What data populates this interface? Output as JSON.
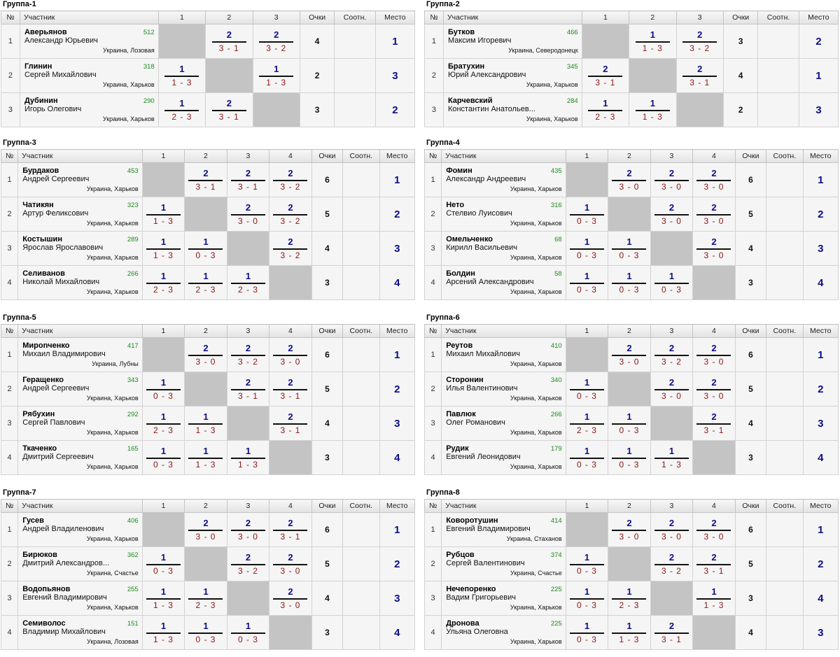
{
  "headers": {
    "num": "№",
    "participant": "Участник",
    "points": "Очки",
    "relative": "Соотн.",
    "place": "Место"
  },
  "groups": [
    {
      "title": "Группа-1",
      "cols": [
        "1",
        "2",
        "3"
      ],
      "rows": [
        {
          "num": "1",
          "last": "Аверьянов",
          "first": "Александр Юрьевич",
          "rating": "512",
          "city": "Украина, Лозовая",
          "cells": [
            null,
            {
              "top": "2",
              "bot": "3 - 1"
            },
            {
              "top": "2",
              "bot": "3 - 2"
            }
          ],
          "points": "4",
          "place": "1"
        },
        {
          "num": "2",
          "last": "Глинин",
          "first": "Сергей Михайлович",
          "rating": "318",
          "city": "Украина, Харьков",
          "cells": [
            {
              "top": "1",
              "bot": "1 - 3"
            },
            null,
            {
              "top": "1",
              "bot": "1 - 3"
            }
          ],
          "points": "2",
          "place": "3"
        },
        {
          "num": "3",
          "last": "Дубинин",
          "first": "Игорь Олегович",
          "rating": "290",
          "city": "Украина, Харьков",
          "cells": [
            {
              "top": "1",
              "bot": "2 - 3"
            },
            {
              "top": "2",
              "bot": "3 - 1"
            },
            null
          ],
          "points": "3",
          "place": "2"
        }
      ]
    },
    {
      "title": "Группа-2",
      "cols": [
        "1",
        "2",
        "3"
      ],
      "rows": [
        {
          "num": "1",
          "last": "Бутков",
          "first": "Максим Игоревич",
          "rating": "466",
          "city": "Украина, Северодонецк",
          "cells": [
            null,
            {
              "top": "1",
              "bot": "1 - 3"
            },
            {
              "top": "2",
              "bot": "3 - 2"
            }
          ],
          "points": "3",
          "place": "2"
        },
        {
          "num": "2",
          "last": "Братухин",
          "first": "Юрий Александрович",
          "rating": "345",
          "city": "Украина, Харьков",
          "cells": [
            {
              "top": "2",
              "bot": "3 - 1"
            },
            null,
            {
              "top": "2",
              "bot": "3 - 1"
            }
          ],
          "points": "4",
          "place": "1"
        },
        {
          "num": "3",
          "last": "Карчевский",
          "first": "Константин Анатольев...",
          "rating": "284",
          "city": "Украина, Харьков",
          "cells": [
            {
              "top": "1",
              "bot": "2 - 3"
            },
            {
              "top": "1",
              "bot": "1 - 3"
            },
            null
          ],
          "points": "2",
          "place": "3"
        }
      ]
    },
    {
      "title": "Группа-3",
      "cols": [
        "1",
        "2",
        "3",
        "4"
      ],
      "rows": [
        {
          "num": "1",
          "last": "Бурдаков",
          "first": "Андрей Сергеевич",
          "rating": "453",
          "city": "Украина, Харьков",
          "cells": [
            null,
            {
              "top": "2",
              "bot": "3 - 1"
            },
            {
              "top": "2",
              "bot": "3 - 1"
            },
            {
              "top": "2",
              "bot": "3 - 2"
            }
          ],
          "points": "6",
          "place": "1"
        },
        {
          "num": "2",
          "last": "Чатикян",
          "first": "Артур Феликсович",
          "rating": "323",
          "city": "Украина, Харьков",
          "cells": [
            {
              "top": "1",
              "bot": "1 - 3"
            },
            null,
            {
              "top": "2",
              "bot": "3 - 0"
            },
            {
              "top": "2",
              "bot": "3 - 2"
            }
          ],
          "points": "5",
          "place": "2"
        },
        {
          "num": "3",
          "last": "Костышин",
          "first": "Ярослав Ярославович",
          "rating": "289",
          "city": "Украина, Харьков",
          "cells": [
            {
              "top": "1",
              "bot": "1 - 3"
            },
            {
              "top": "1",
              "bot": "0 - 3"
            },
            null,
            {
              "top": "2",
              "bot": "3 - 2"
            }
          ],
          "points": "4",
          "place": "3"
        },
        {
          "num": "4",
          "last": "Селиванов",
          "first": "Николай Михайлович",
          "rating": "266",
          "city": "Украина, Харьков",
          "cells": [
            {
              "top": "1",
              "bot": "2 - 3"
            },
            {
              "top": "1",
              "bot": "2 - 3"
            },
            {
              "top": "1",
              "bot": "2 - 3"
            },
            null
          ],
          "points": "3",
          "place": "4"
        }
      ]
    },
    {
      "title": "Группа-4",
      "cols": [
        "1",
        "2",
        "3",
        "4"
      ],
      "rows": [
        {
          "num": "1",
          "last": "Фомин",
          "first": "Александр Андреевич",
          "rating": "435",
          "city": "Украина, Харьков",
          "cells": [
            null,
            {
              "top": "2",
              "bot": "3 - 0"
            },
            {
              "top": "2",
              "bot": "3 - 0"
            },
            {
              "top": "2",
              "bot": "3 - 0"
            }
          ],
          "points": "6",
          "place": "1"
        },
        {
          "num": "2",
          "last": "Нето",
          "first": "Стелвио Луисович",
          "rating": "316",
          "city": "Украина, Харьков",
          "cells": [
            {
              "top": "1",
              "bot": "0 - 3"
            },
            null,
            {
              "top": "2",
              "bot": "3 - 0"
            },
            {
              "top": "2",
              "bot": "3 - 0"
            }
          ],
          "points": "5",
          "place": "2"
        },
        {
          "num": "3",
          "last": "Омельченко",
          "first": "Кирилл Васильевич",
          "rating": "68",
          "city": "Украина, Харьков",
          "cells": [
            {
              "top": "1",
              "bot": "0 - 3"
            },
            {
              "top": "1",
              "bot": "0 - 3"
            },
            null,
            {
              "top": "2",
              "bot": "3 - 0"
            }
          ],
          "points": "4",
          "place": "3"
        },
        {
          "num": "4",
          "last": "Болдин",
          "first": "Арсений Александрович",
          "rating": "58",
          "city": "Украина, Харьков",
          "cells": [
            {
              "top": "1",
              "bot": "0 - 3"
            },
            {
              "top": "1",
              "bot": "0 - 3"
            },
            {
              "top": "1",
              "bot": "0 - 3"
            },
            null
          ],
          "points": "3",
          "place": "4"
        }
      ]
    },
    {
      "title": "Группа-5",
      "cols": [
        "1",
        "2",
        "3",
        "4"
      ],
      "rows": [
        {
          "num": "1",
          "last": "Мирonченко",
          "first": "Михаил Владимирович",
          "rating": "417",
          "city": "Украина, Лубны",
          "cells": [
            null,
            {
              "top": "2",
              "bot": "3 - 0"
            },
            {
              "top": "2",
              "bot": "3 - 2"
            },
            {
              "top": "2",
              "bot": "3 - 0"
            }
          ],
          "points": "6",
          "place": "1"
        },
        {
          "num": "2",
          "last": "Геращенко",
          "first": "Андрей Сергеевич",
          "rating": "343",
          "city": "Украина, Харьков",
          "cells": [
            {
              "top": "1",
              "bot": "0 - 3"
            },
            null,
            {
              "top": "2",
              "bot": "3 - 1"
            },
            {
              "top": "2",
              "bot": "3 - 1"
            }
          ],
          "points": "5",
          "place": "2"
        },
        {
          "num": "3",
          "last": "Рябухин",
          "first": "Сергей Павлович",
          "rating": "292",
          "city": "Украина, Харьков",
          "cells": [
            {
              "top": "1",
              "bot": "2 - 3"
            },
            {
              "top": "1",
              "bot": "1 - 3"
            },
            null,
            {
              "top": "2",
              "bot": "3 - 1"
            }
          ],
          "points": "4",
          "place": "3"
        },
        {
          "num": "4",
          "last": "Ткаченко",
          "first": "Дмитрий Сергеевич",
          "rating": "165",
          "city": "Украина, Харьков",
          "cells": [
            {
              "top": "1",
              "bot": "0 - 3"
            },
            {
              "top": "1",
              "bot": "1 - 3"
            },
            {
              "top": "1",
              "bot": "1 - 3"
            },
            null
          ],
          "points": "3",
          "place": "4"
        }
      ]
    },
    {
      "title": "Группа-6",
      "cols": [
        "1",
        "2",
        "3",
        "4"
      ],
      "rows": [
        {
          "num": "1",
          "last": "Реутов",
          "first": "Михаил Михайлович",
          "rating": "410",
          "city": "Украина, Харьков",
          "cells": [
            null,
            {
              "top": "2",
              "bot": "3 - 0"
            },
            {
              "top": "2",
              "bot": "3 - 2"
            },
            {
              "top": "2",
              "bot": "3 - 0"
            }
          ],
          "points": "6",
          "place": "1"
        },
        {
          "num": "2",
          "last": "Сторонин",
          "first": "Илья Валентинович",
          "rating": "340",
          "city": "Украина, Харьков",
          "cells": [
            {
              "top": "1",
              "bot": "0 - 3"
            },
            null,
            {
              "top": "2",
              "bot": "3 - 0"
            },
            {
              "top": "2",
              "bot": "3 - 0"
            }
          ],
          "points": "5",
          "place": "2"
        },
        {
          "num": "3",
          "last": "Павлюк",
          "first": "Олег Романович",
          "rating": "266",
          "city": "Украина, Харьков",
          "cells": [
            {
              "top": "1",
              "bot": "2 - 3"
            },
            {
              "top": "1",
              "bot": "0 - 3"
            },
            null,
            {
              "top": "2",
              "bot": "3 - 1"
            }
          ],
          "points": "4",
          "place": "3"
        },
        {
          "num": "4",
          "last": "Рудик",
          "first": "Евгений Леонидович",
          "rating": "179",
          "city": "Украина, Харьков",
          "cells": [
            {
              "top": "1",
              "bot": "0 - 3"
            },
            {
              "top": "1",
              "bot": "0 - 3"
            },
            {
              "top": "1",
              "bot": "1 - 3"
            },
            null
          ],
          "points": "3",
          "place": "4"
        }
      ]
    },
    {
      "title": "Группа-7",
      "cols": [
        "1",
        "2",
        "3",
        "4"
      ],
      "rows": [
        {
          "num": "1",
          "last": "Гусев",
          "first": "Андрей Владиленович",
          "rating": "406",
          "city": "Украина, Харьков",
          "cells": [
            null,
            {
              "top": "2",
              "bot": "3 - 0"
            },
            {
              "top": "2",
              "bot": "3 - 0"
            },
            {
              "top": "2",
              "bot": "3 - 1"
            }
          ],
          "points": "6",
          "place": "1"
        },
        {
          "num": "2",
          "last": "Бирюков",
          "first": "Дмитрий Александров...",
          "rating": "362",
          "city": "Украина, Счастье",
          "cells": [
            {
              "top": "1",
              "bot": "0 - 3"
            },
            null,
            {
              "top": "2",
              "bot": "3 - 2"
            },
            {
              "top": "2",
              "bot": "3 - 0"
            }
          ],
          "points": "5",
          "place": "2"
        },
        {
          "num": "3",
          "last": "Водопьянов",
          "first": "Евгений Владимирович",
          "rating": "255",
          "city": "Украина, Харьков",
          "cells": [
            {
              "top": "1",
              "bot": "1 - 3"
            },
            {
              "top": "1",
              "bot": "2 - 3"
            },
            null,
            {
              "top": "2",
              "bot": "3 - 0"
            }
          ],
          "points": "4",
          "place": "3"
        },
        {
          "num": "4",
          "last": "Семиволос",
          "first": "Владимир Михайлович",
          "rating": "151",
          "city": "Украина, Лозовая",
          "cells": [
            {
              "top": "1",
              "bot": "1 - 3"
            },
            {
              "top": "1",
              "bot": "0 - 3"
            },
            {
              "top": "1",
              "bot": "0 - 3"
            },
            null
          ],
          "points": "3",
          "place": "4"
        }
      ]
    },
    {
      "title": "Группа-8",
      "cols": [
        "1",
        "2",
        "3",
        "4"
      ],
      "rows": [
        {
          "num": "1",
          "last": "Коворотушин",
          "first": "Евгений Владимирович",
          "rating": "414",
          "city": "Украина, Стаханов",
          "cells": [
            null,
            {
              "top": "2",
              "bot": "3 - 0"
            },
            {
              "top": "2",
              "bot": "3 - 0"
            },
            {
              "top": "2",
              "bot": "3 - 0"
            }
          ],
          "points": "6",
          "place": "1"
        },
        {
          "num": "2",
          "last": "Рубцов",
          "first": "Сергей Валентинович",
          "rating": "374",
          "city": "Украина, Счастье",
          "cells": [
            {
              "top": "1",
              "bot": "0 - 3"
            },
            null,
            {
              "top": "2",
              "bot": "3 - 2"
            },
            {
              "top": "2",
              "bot": "3 - 1"
            }
          ],
          "points": "5",
          "place": "2"
        },
        {
          "num": "3",
          "last": "Нечепоренко",
          "first": "Вадим Григорьевич",
          "rating": "225",
          "city": "Украина, Харьков",
          "cells": [
            {
              "top": "1",
              "bot": "0 - 3"
            },
            {
              "top": "1",
              "bot": "2 - 3"
            },
            null,
            {
              "top": "1",
              "bot": "1 - 3"
            }
          ],
          "points": "3",
          "place": "4"
        },
        {
          "num": "4",
          "last": "Дронова",
          "first": "Ульяна Олеговна",
          "rating": "225",
          "city": "Украина, Харьков",
          "cells": [
            {
              "top": "1",
              "bot": "0 - 3"
            },
            {
              "top": "1",
              "bot": "1 - 3"
            },
            {
              "top": "2",
              "bot": "3 - 1"
            },
            null
          ],
          "points": "4",
          "place": "3"
        }
      ]
    }
  ]
}
